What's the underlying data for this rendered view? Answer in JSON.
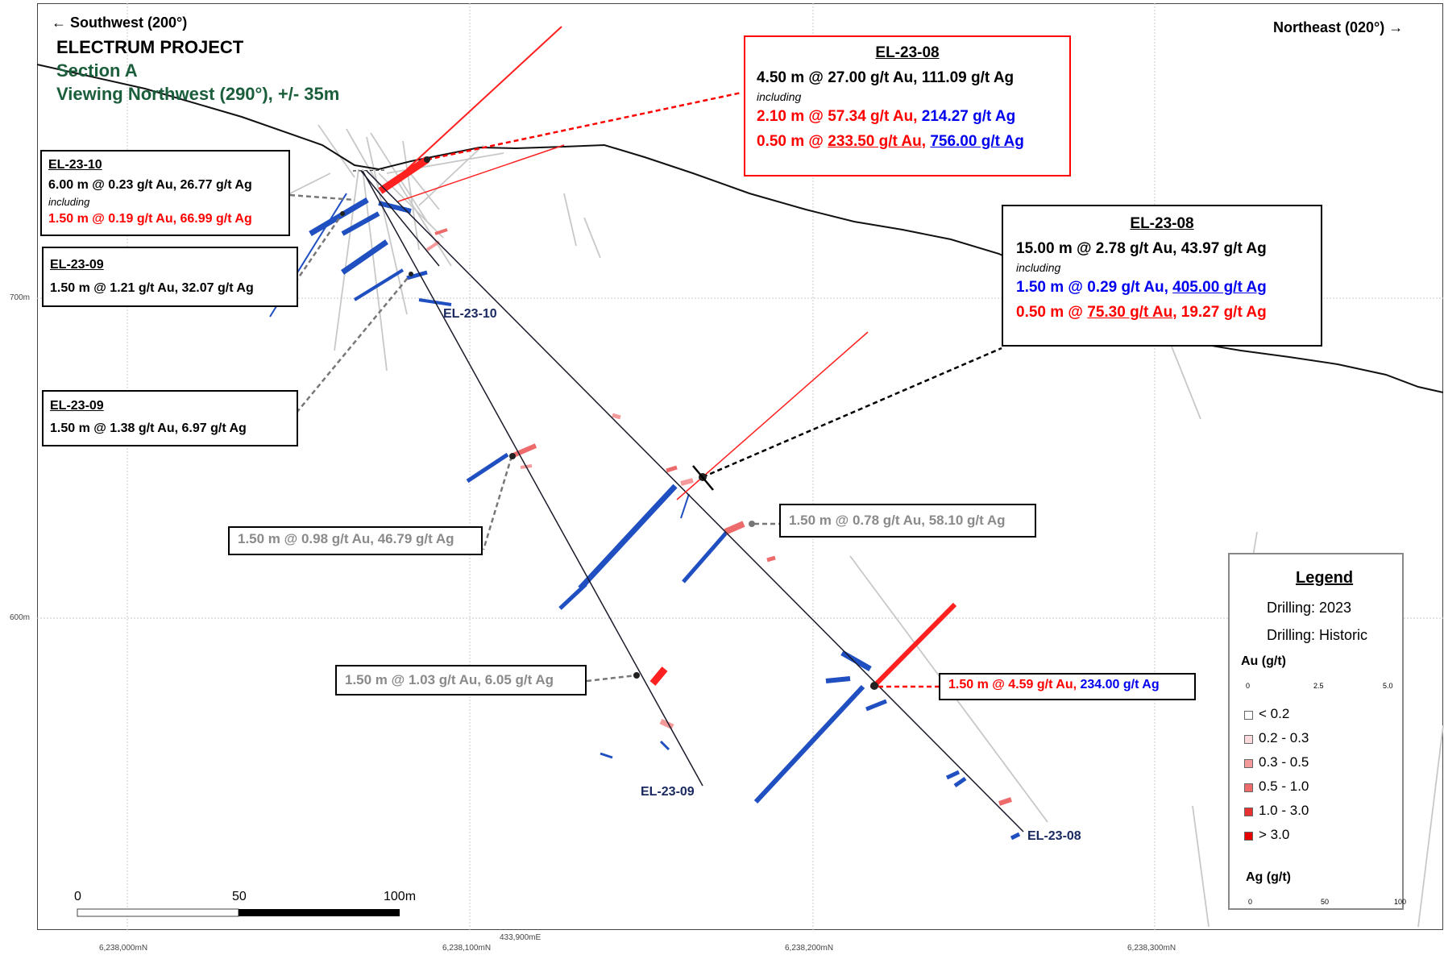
{
  "header": {
    "southwest": "← Southwest (200°)",
    "northeast": "Northeast (020°) →",
    "project": "ELECTRUM PROJECT",
    "section": "Section A",
    "viewing": "Viewing Northwest (290°), +/- 35m"
  },
  "boxes": {
    "top_el2308": {
      "title": "EL-23-08",
      "line1": "4.50 m @ 27.00 g/t Au, 111.09 g/t Ag",
      "incl": "including",
      "line2_au": "2.10 m @ 57.34 g/t Au,",
      "line2_ag": "214.27 g/t Ag",
      "line3_prefix": "0.50 m @ ",
      "line3_au": "233.50 g/t Au,",
      "line3_ag": "756.00 g/t Ag"
    },
    "right_el2308": {
      "title": "EL-23-08",
      "line1": "15.00 m @ 2.78 g/t Au, 43.97 g/t Ag",
      "incl": "including",
      "line2_prefix": "1.50 m @ 0.29 g/t Au, ",
      "line2_ag": "405.00 g/t Ag",
      "line3_prefix": "0.50 m @ ",
      "line3_au": "75.30 g/t Au,",
      "line3_ag": " 19.27 g/t Ag"
    },
    "el2310": {
      "title": "EL-23-10",
      "line1": "6.00 m @ 0.23 g/t Au, 26.77 g/t Ag",
      "incl": "including",
      "line2": "1.50 m @ 0.19 g/t Au, 66.99 g/t Ag"
    },
    "el2309_a": {
      "title": "EL-23-09",
      "line1": "1.50 m @ 1.21 g/t Au, 32.07 g/t Ag"
    },
    "el2309_b": {
      "title": "EL-23-09",
      "line1": "1.50 m @ 1.38 g/t Au, 6.97 g/t Ag"
    },
    "grey1": "1.50 m @ 0.98 g/t Au, 46.79 g/t Ag",
    "grey2": "1.50 m @ 0.78 g/t Au, 58.10 g/t Ag",
    "grey3": "1.50 m @ 1.03 g/t Au, 6.05 g/t Ag",
    "deep": {
      "au": "1.50 m @ 4.59 g/t Au,",
      "ag": " 234.00 g/t Ag"
    }
  },
  "hole_labels": {
    "el2310": "EL-23-10",
    "el2309": "EL-23-09",
    "el2308": "EL-23-08"
  },
  "axes": {
    "elev_700": "700m",
    "elev_600": "600m",
    "easting": "433,900mE",
    "northings": [
      "6,238,000mN",
      "6,238,100mN",
      "6,238,200mN",
      "6,238,300mN"
    ]
  },
  "scale_bar": {
    "labels": [
      "0",
      "50",
      "100m"
    ]
  },
  "legend": {
    "title": "Legend",
    "drilling_2023": "Drilling: 2023",
    "drilling_historic": "Drilling: Historic",
    "au_title": "Au (g/t)",
    "au_ticks": [
      "0",
      "2.5",
      "5.0"
    ],
    "classes": [
      {
        "label": "< 0.2",
        "color": "#ffffff"
      },
      {
        "label": "0.2 - 0.3",
        "color": "#fadada"
      },
      {
        "label": "0.3 - 0.5",
        "color": "#f49a9a"
      },
      {
        "label": "0.5 - 1.0",
        "color": "#ee6b6b"
      },
      {
        "label": "1.0 - 3.0",
        "color": "#e83232"
      },
      {
        "label": "> 3.0",
        "color": "#e60000"
      }
    ],
    "ag_title": "Ag (g/t)",
    "ag_ticks": [
      "0",
      "50",
      "100"
    ]
  },
  "colors": {
    "au": "#ff2020",
    "ag": "#1f4fc0",
    "hole": "#1a1a2a",
    "historic": "#c8c8c8",
    "topo": "#111111"
  }
}
